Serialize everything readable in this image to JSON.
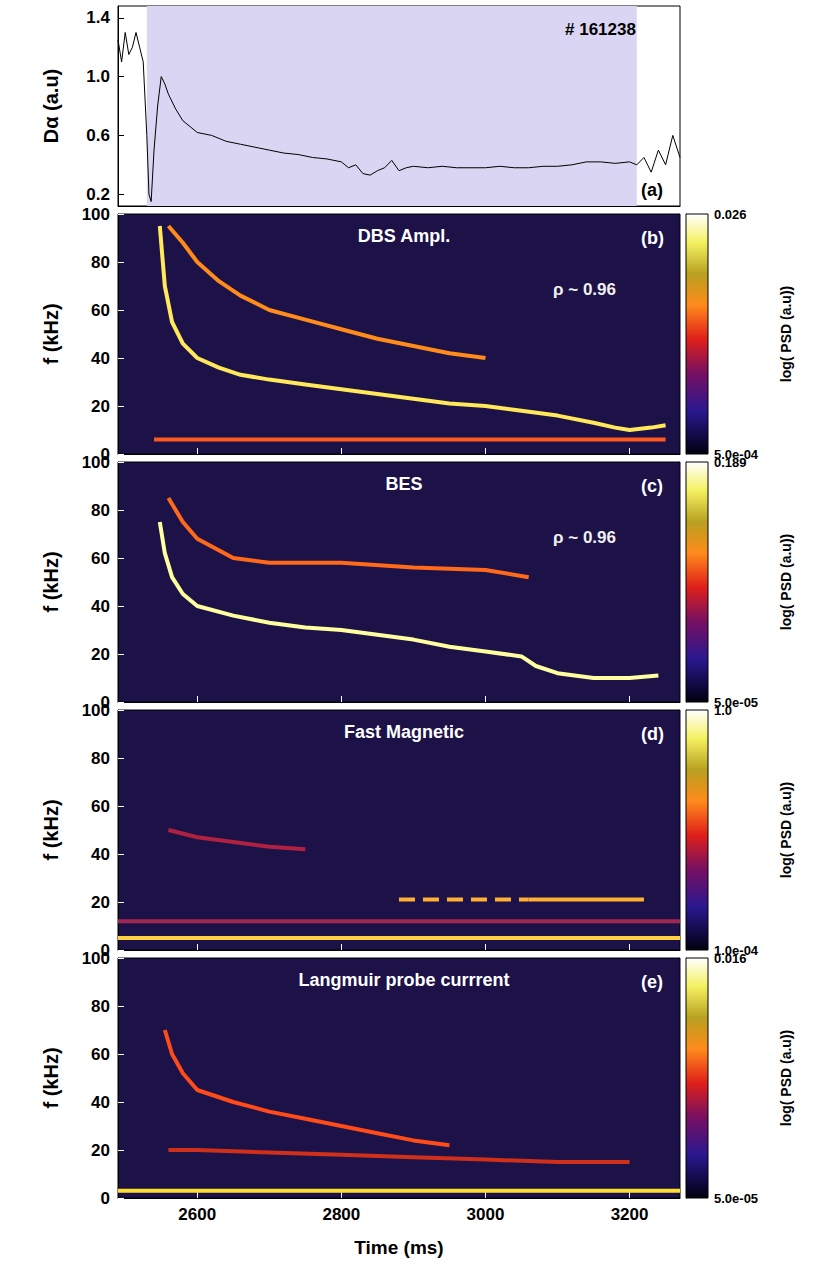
{
  "chart_data": [
    {
      "type": "line",
      "panel_label": "(a)",
      "annotations": [
        "# 161238"
      ],
      "ylabel": "Dα (a.u)",
      "tick_labels": "y",
      "xlim": [
        2490,
        3270
      ],
      "xticks": [
        2600,
        2800,
        3000,
        3200
      ],
      "ylim": [
        0.12,
        1.48
      ],
      "yticks": [
        0.2,
        0.6,
        {
          "value": 1.0,
          "label": "1.0"
        },
        1.4
      ],
      "shaded": [
        2530,
        3210
      ],
      "shaded_color": "#d9d5f2",
      "series": [
        {
          "color": "#000000",
          "x": [
            2490,
            2495,
            2500,
            2505,
            2510,
            2515,
            2520,
            2525,
            2530,
            2533,
            2536,
            2540,
            2545,
            2550,
            2555,
            2560,
            2570,
            2580,
            2590,
            2600,
            2620,
            2640,
            2660,
            2680,
            2700,
            2720,
            2740,
            2760,
            2780,
            2800,
            2810,
            2820,
            2830,
            2840,
            2850,
            2860,
            2870,
            2880,
            2890,
            2900,
            2920,
            2940,
            2960,
            2980,
            3000,
            3020,
            3040,
            3060,
            3080,
            3100,
            3120,
            3140,
            3160,
            3180,
            3200,
            3210,
            3220,
            3230,
            3240,
            3250,
            3260,
            3270
          ],
          "values": [
            1.25,
            1.1,
            1.3,
            1.15,
            1.2,
            1.3,
            1.2,
            1.1,
            0.6,
            0.2,
            0.15,
            0.5,
            0.8,
            1.0,
            0.95,
            0.88,
            0.78,
            0.7,
            0.66,
            0.62,
            0.6,
            0.56,
            0.54,
            0.52,
            0.5,
            0.48,
            0.47,
            0.45,
            0.44,
            0.42,
            0.38,
            0.4,
            0.34,
            0.33,
            0.36,
            0.38,
            0.43,
            0.36,
            0.38,
            0.39,
            0.38,
            0.39,
            0.38,
            0.38,
            0.38,
            0.39,
            0.38,
            0.38,
            0.39,
            0.39,
            0.4,
            0.42,
            0.42,
            0.41,
            0.42,
            0.4,
            0.45,
            0.35,
            0.5,
            0.4,
            0.6,
            0.45
          ]
        }
      ]
    },
    {
      "type": "spectrogram",
      "title": "DBS Ampl.",
      "panel_label": "(b)",
      "annotations": [
        "ρ ~ 0.96"
      ],
      "ylabel": "f (kHz)",
      "tick_labels": "y",
      "xlim": [
        2490,
        3270
      ],
      "xticks": [
        2600,
        2800,
        3000,
        3200
      ],
      "ylim": [
        0,
        100
      ],
      "yticks": [
        0,
        20,
        40,
        60,
        80,
        100
      ],
      "colorbar": {
        "label": "log( PSD (a.u))",
        "log": true,
        "range": [
          0.0005,
          0.026
        ],
        "ticks": [
          {
            "value": 0.0005,
            "label": "5.0e-04"
          },
          {
            "value": 0.026,
            "label": "0.026"
          }
        ]
      },
      "series": [
        {
          "color": "#ffe85a",
          "x": [
            2548,
            2555,
            2565,
            2580,
            2600,
            2630,
            2660,
            2700,
            2750,
            2800,
            2850,
            2900,
            2950,
            3000,
            3050,
            3100,
            3150,
            3180,
            3200,
            3230,
            3250
          ],
          "values": [
            95,
            70,
            55,
            46,
            40,
            36,
            33,
            31,
            29,
            27,
            25,
            23,
            21,
            20,
            18,
            16,
            13,
            11,
            10,
            11,
            12
          ]
        },
        {
          "color": "#ff8c1a",
          "x": [
            2560,
            2580,
            2600,
            2630,
            2660,
            2700,
            2750,
            2800,
            2850,
            2900,
            2950,
            3000
          ],
          "values": [
            95,
            88,
            80,
            72,
            66,
            60,
            56,
            52,
            48,
            45,
            42,
            40
          ]
        },
        {
          "color": "#ff5a1e",
          "x": [
            2540,
            3250
          ],
          "values": [
            6,
            6
          ]
        }
      ]
    },
    {
      "type": "spectrogram",
      "title": "BES",
      "panel_label": "(c)",
      "annotations": [
        "ρ ~ 0.96"
      ],
      "ylabel": "f (kHz)",
      "tick_labels": "y",
      "xlim": [
        2490,
        3270
      ],
      "xticks": [
        2600,
        2800,
        3000,
        3200
      ],
      "ylim": [
        0,
        100
      ],
      "yticks": [
        0,
        20,
        40,
        60,
        80,
        100
      ],
      "colorbar": {
        "label": "log( PSD (a.u))",
        "log": true,
        "range": [
          5e-05,
          0.189
        ],
        "ticks": [
          {
            "value": 5e-05,
            "label": "5.0e-05"
          },
          {
            "value": 0.189,
            "label": "0.189"
          }
        ]
      },
      "series": [
        {
          "color": "#ff6a1a",
          "x": [
            2560,
            2580,
            2600,
            2650,
            2700,
            2800,
            2900,
            3000,
            3060
          ],
          "values": [
            85,
            75,
            68,
            60,
            58,
            58,
            56,
            55,
            52
          ]
        },
        {
          "color": "#ffffa0",
          "x": [
            2548,
            2555,
            2565,
            2580,
            2600,
            2650,
            2700,
            2750,
            2800,
            2850,
            2900,
            2950,
            3000,
            3050,
            3070,
            3100,
            3150,
            3200,
            3240
          ],
          "values": [
            75,
            62,
            52,
            45,
            40,
            36,
            33,
            31,
            30,
            28,
            26,
            23,
            21,
            19,
            15,
            12,
            10,
            10,
            11
          ]
        }
      ]
    },
    {
      "type": "spectrogram",
      "title": "Fast Magnetic",
      "panel_label": "(d)",
      "ylabel": "f (kHz)",
      "tick_labels": "y",
      "xlim": [
        2490,
        3270
      ],
      "xticks": [
        2600,
        2800,
        3000,
        3200
      ],
      "ylim": [
        0,
        100
      ],
      "yticks": [
        0,
        20,
        40,
        60,
        80,
        100
      ],
      "colorbar": {
        "label": "log( PSD (a.u))",
        "log": true,
        "range": [
          0.0001,
          1.0
        ],
        "ticks": [
          {
            "value": 0.0001,
            "label": "1.0e-04"
          },
          {
            "value": 1.0,
            "label": "1.0"
          }
        ]
      },
      "series": [
        {
          "color": "#b02040",
          "x": [
            2560,
            2600,
            2650,
            2700,
            2750
          ],
          "values": [
            50,
            47,
            45,
            43,
            42
          ]
        },
        {
          "color": "#a02850",
          "x": [
            2490,
            3270
          ],
          "values": [
            12,
            12
          ]
        },
        {
          "color": "#ffd040",
          "x": [
            2490,
            3270
          ],
          "values": [
            5,
            5
          ]
        },
        {
          "color": "#ffb030",
          "line_style": "dashed",
          "x": [
            2880,
            3060
          ],
          "values": [
            21,
            21
          ]
        },
        {
          "color": "#ffb030",
          "x": [
            3060,
            3220
          ],
          "values": [
            21,
            21
          ]
        }
      ]
    },
    {
      "type": "spectrogram",
      "title": "Langmuir probe currrent",
      "panel_label": "(e)",
      "ylabel": "f (kHz)",
      "xlabel": "Time (ms)",
      "xlim": [
        2490,
        3270
      ],
      "xticks": [
        2600,
        2800,
        3000,
        3200
      ],
      "ylim": [
        0,
        100
      ],
      "yticks": [
        0,
        20,
        40,
        60,
        80,
        100
      ],
      "colorbar": {
        "label": "log( PSD (a.u))",
        "log": true,
        "range": [
          5e-05,
          0.016
        ],
        "ticks": [
          {
            "value": 5e-05,
            "label": "5.0e-05"
          },
          {
            "value": 0.016,
            "label": "0.016"
          }
        ]
      },
      "series": [
        {
          "color": "#d0301a",
          "x": [
            2560,
            2600,
            2700,
            2800,
            2900,
            3000,
            3100,
            3200
          ],
          "values": [
            20,
            20,
            19,
            18,
            17,
            16,
            15,
            15
          ]
        },
        {
          "color": "#ff4a1a",
          "x": [
            2555,
            2565,
            2580,
            2600,
            2650,
            2700,
            2750,
            2800,
            2850,
            2900,
            2950
          ],
          "values": [
            70,
            60,
            52,
            45,
            40,
            36,
            33,
            30,
            27,
            24,
            22
          ]
        },
        {
          "color": "#ffe030",
          "x": [
            2490,
            3270
          ],
          "values": [
            3,
            3
          ]
        }
      ]
    }
  ]
}
